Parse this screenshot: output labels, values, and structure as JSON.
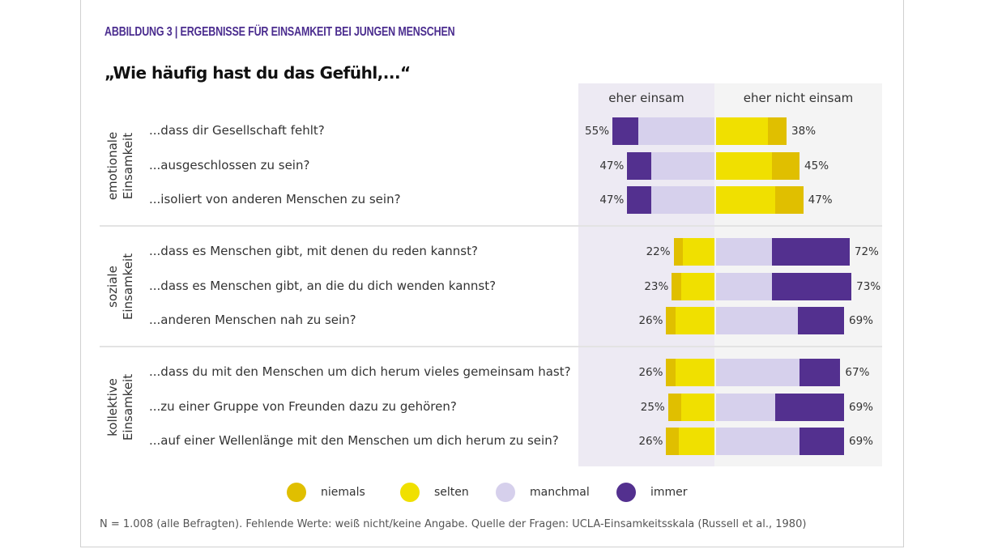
{
  "figure_title": "ABBILDUNG 3 | ERGEBNISSE FÜR EINSAMKEIT BEI JUNGEN MENSCHEN",
  "footnote": "N = 1.008 (alle Befragten). Fehlende Werte: weiß nicht/keine Angabe. Quelle der Fragen: UCLA-Einsamkeitsskala (Russell et al., 1980)",
  "chart_data": {
    "type": "bar",
    "subtype": "diverging-stacked-horizontal",
    "title": "„Wie häufig hast du das Gefühl,...“",
    "unit": "%",
    "column_headers": {
      "left": "eher einsam",
      "right": "eher nicht einsam"
    },
    "legend": [
      {
        "key": "niemals",
        "label": "niemals",
        "color": "#e0bf00"
      },
      {
        "key": "selten",
        "label": "selten",
        "color": "#f0e000"
      },
      {
        "key": "manchmal",
        "label": "manchmal",
        "color": "#d6d0ec"
      },
      {
        "key": "immer",
        "label": "immer",
        "color": "#53308f"
      }
    ],
    "legend_position": "bottom",
    "groups": [
      {
        "label": "emotionale Einsamkeit",
        "lonely_side_categories": [
          "immer",
          "manchmal"
        ],
        "not_lonely_side_categories": [
          "selten",
          "niemals"
        ],
        "rows": [
          {
            "question": "...dass dir Gesellschaft fehlt?",
            "left_total": "55%",
            "right_total": "38%",
            "values": {
              "immer": 14,
              "manchmal": 41,
              "selten": 28,
              "niemals": 10
            }
          },
          {
            "question": "...ausgeschlossen zu sein?",
            "left_total": "47%",
            "right_total": "45%",
            "values": {
              "immer": 13,
              "manchmal": 34,
              "selten": 30,
              "niemals": 15
            }
          },
          {
            "question": "...isoliert von anderen Menschen zu sein?",
            "left_total": "47%",
            "right_total": "47%",
            "values": {
              "immer": 13,
              "manchmal": 34,
              "selten": 32,
              "niemals": 15
            }
          }
        ]
      },
      {
        "label": "soziale Einsamkeit",
        "lonely_side_categories": [
          "niemals",
          "selten"
        ],
        "not_lonely_side_categories": [
          "manchmal",
          "immer"
        ],
        "rows": [
          {
            "question": "...dass es Menschen gibt, mit denen du reden kannst?",
            "left_total": "22%",
            "right_total": "72%",
            "values": {
              "niemals": 5,
              "selten": 17,
              "manchmal": 30,
              "immer": 42
            }
          },
          {
            "question": "...dass es Menschen gibt, an die du dich wenden kannst?",
            "left_total": "23%",
            "right_total": "73%",
            "values": {
              "niemals": 5,
              "selten": 18,
              "manchmal": 30,
              "immer": 43
            }
          },
          {
            "question": "...anderen Menschen nah zu sein?",
            "left_total": "26%",
            "right_total": "69%",
            "values": {
              "niemals": 5,
              "selten": 21,
              "manchmal": 44,
              "immer": 25
            }
          }
        ]
      },
      {
        "label": "kollektive Einsamkeit",
        "lonely_side_categories": [
          "niemals",
          "selten"
        ],
        "not_lonely_side_categories": [
          "manchmal",
          "immer"
        ],
        "rows": [
          {
            "question": "...dass du mit den Menschen um dich herum vieles gemeinsam hast?",
            "left_total": "26%",
            "right_total": "67%",
            "values": {
              "niemals": 5,
              "selten": 21,
              "manchmal": 45,
              "immer": 22
            }
          },
          {
            "question": "...zu einer Gruppe von Freunden dazu zu gehören?",
            "left_total": "25%",
            "right_total": "69%",
            "values": {
              "niemals": 7,
              "selten": 18,
              "manchmal": 32,
              "immer": 37
            }
          },
          {
            "question": "...auf einer Wellenlänge mit den Menschen um dich herum zu sein?",
            "left_total": "26%",
            "right_total": "69%",
            "values": {
              "niemals": 7,
              "selten": 19,
              "manchmal": 45,
              "immer": 24
            }
          }
        ]
      }
    ]
  }
}
